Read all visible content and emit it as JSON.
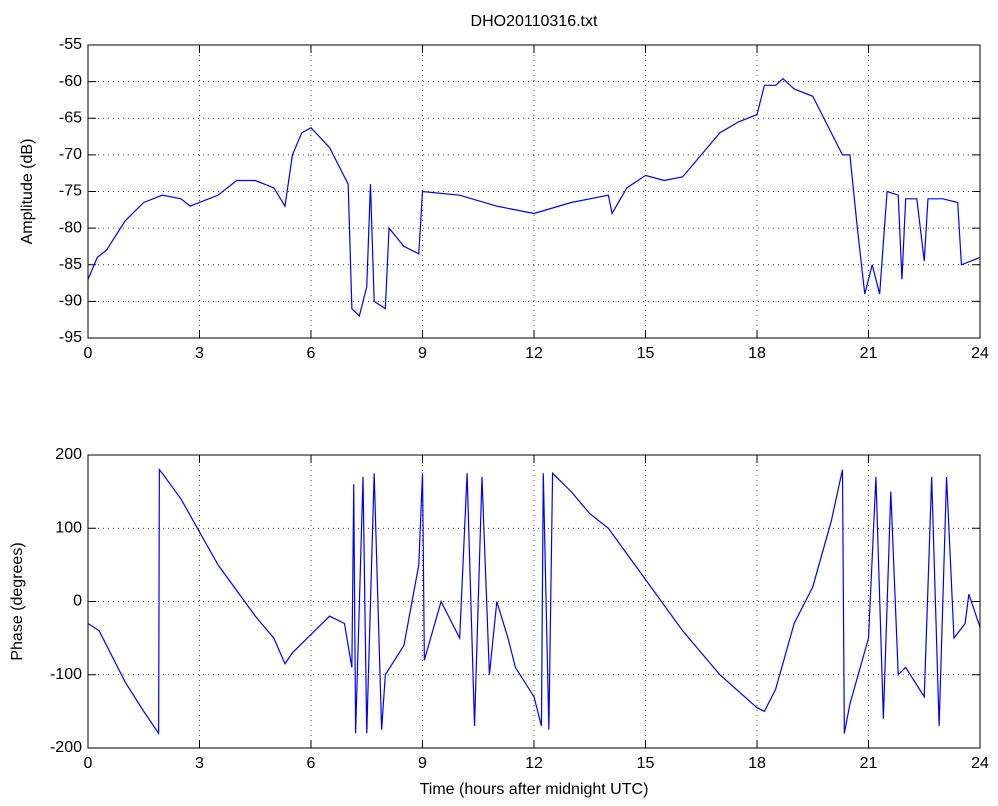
{
  "chart_data": [
    {
      "type": "line",
      "title": "DHO20110316.txt",
      "y_label": "Amplitude (dB)",
      "x": [
        0,
        0.25,
        0.5,
        1,
        1.5,
        2,
        2.5,
        2.75,
        3,
        3.5,
        4,
        4.5,
        5,
        5.3,
        5.5,
        5.75,
        6,
        6.5,
        7,
        7.1,
        7.3,
        7.5,
        7.6,
        7.7,
        8,
        8.1,
        8.5,
        8.9,
        9,
        10,
        11,
        12,
        13,
        14,
        14.1,
        14.5,
        15,
        15.5,
        16,
        16.5,
        17,
        17.5,
        18,
        18.2,
        18.5,
        18.7,
        19,
        19.5,
        20,
        20.3,
        20.5,
        20.7,
        20.9,
        21.1,
        21.3,
        21.5,
        21.8,
        21.9,
        22,
        22.3,
        22.5,
        22.6,
        23,
        23.4,
        23.5,
        24
      ],
      "series": [
        {
          "name": "Amplitude",
          "color": "#0000ff",
          "values": [
            -87,
            -84,
            -83,
            -79,
            -76.5,
            -75.5,
            -76,
            -77,
            -76.5,
            -75.5,
            -73.5,
            -73.5,
            -74.5,
            -77,
            -70,
            -67,
            -66.3,
            -69,
            -74,
            -91,
            -92,
            -88,
            -74,
            -90,
            -91,
            -80,
            -82.5,
            -83.5,
            -75,
            -75.5,
            -77,
            -78,
            -76.5,
            -75.5,
            -78,
            -74.5,
            -72.8,
            -73.5,
            -73,
            -70,
            -67,
            -65.5,
            -64.5,
            -60.5,
            -60.5,
            -59.6,
            -61,
            -62,
            -67,
            -70,
            -70,
            -80,
            -89,
            -85,
            -89,
            -75,
            -75.5,
            -87,
            -76,
            -76,
            -84.5,
            -76,
            -76,
            -76.5,
            -85,
            -84
          ]
        }
      ],
      "xlim": [
        0,
        24
      ],
      "xticks": [
        0,
        3,
        6,
        9,
        12,
        15,
        18,
        21,
        24
      ],
      "ylim": [
        -95,
        -55
      ],
      "yticks": [
        -95,
        -90,
        -85,
        -80,
        -75,
        -70,
        -65,
        -60,
        -55
      ],
      "grid": true
    },
    {
      "type": "line",
      "x_label": "Time (hours after midnight UTC)",
      "y_label": "Phase (degrees)",
      "x": [
        0,
        0.3,
        1,
        1.5,
        1.9,
        1.92,
        2,
        2.5,
        3,
        3.5,
        4,
        4.5,
        5,
        5.3,
        5.5,
        6,
        6.5,
        6.9,
        7.1,
        7.15,
        7.2,
        7.4,
        7.5,
        7.7,
        7.9,
        8,
        8.5,
        8.9,
        9,
        9.05,
        9.5,
        10,
        10.2,
        10.4,
        10.6,
        10.8,
        11,
        11.3,
        11.5,
        12,
        12.2,
        12.25,
        12.4,
        12.5,
        13,
        13.5,
        14,
        15,
        16,
        17,
        18,
        18.2,
        18.5,
        19,
        19.5,
        20,
        20.3,
        20.35,
        20.5,
        21,
        21.2,
        21.4,
        21.6,
        21.8,
        22,
        22.5,
        22.7,
        22.9,
        23.1,
        23.3,
        23.6,
        23.7,
        24
      ],
      "series": [
        {
          "name": "Phase",
          "color": "#0000ff",
          "values": [
            -30,
            -40,
            -110,
            -150,
            -180,
            180,
            175,
            140,
            95,
            50,
            15,
            -20,
            -50,
            -85,
            -70,
            -45,
            -20,
            -30,
            -90,
            160,
            -180,
            170,
            -180,
            175,
            -175,
            -100,
            -60,
            50,
            175,
            -80,
            0,
            -50,
            175,
            -170,
            170,
            -100,
            0,
            -50,
            -90,
            -130,
            -170,
            175,
            -175,
            175,
            150,
            120,
            100,
            30,
            -40,
            -100,
            -145,
            -150,
            -120,
            -30,
            20,
            110,
            180,
            -180,
            -140,
            -50,
            170,
            -160,
            150,
            -100,
            -90,
            -130,
            170,
            -170,
            170,
            -50,
            -30,
            10,
            -35
          ]
        }
      ],
      "xlim": [
        0,
        24
      ],
      "xticks": [
        0,
        3,
        6,
        9,
        12,
        15,
        18,
        21,
        24
      ],
      "ylim": [
        -200,
        200
      ],
      "yticks": [
        -200,
        -100,
        0,
        100,
        200
      ],
      "grid": true
    }
  ]
}
